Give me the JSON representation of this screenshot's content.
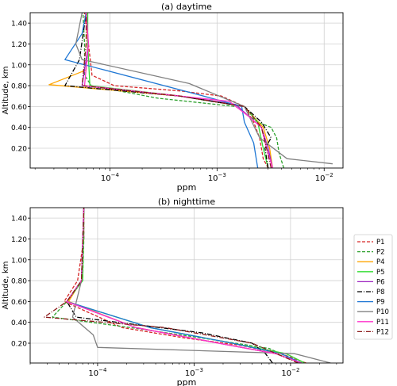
{
  "chart_data": [
    {
      "type": "line",
      "title": "(a) daytime",
      "xlabel": "ppm",
      "ylabel": "Altitude, km",
      "x_scale": "log",
      "xlim": [
        1.8e-05,
        0.015
      ],
      "ylim": [
        0.01,
        1.5
      ],
      "yticks": [
        "0.20",
        "0.40",
        "0.60",
        "0.80",
        "1.00",
        "1.20",
        "1.40"
      ],
      "xticks": [
        "10^-4",
        "10^-3",
        "10^-2"
      ],
      "grid": true,
      "series": [
        {
          "name": "P1",
          "color": "#d62728",
          "dash": "4,2",
          "x": [
            0.003,
            0.0027,
            0.0025,
            0.0022,
            0.0018,
            0.0011,
            0.00045,
            0.00011,
            6.8e-05,
            6.3e-05,
            5.8e-05
          ],
          "y": [
            0.01,
            0.1,
            0.3,
            0.45,
            0.6,
            0.7,
            0.75,
            0.8,
            0.9,
            1.2,
            1.5
          ]
        },
        {
          "name": "P2",
          "color": "#2ca02c",
          "dash": "4,2",
          "x": [
            0.0042,
            0.0038,
            0.0036,
            0.0032,
            0.0024,
            0.0015,
            0.00028,
            6.7e-05,
            5.8e-05,
            5.8e-05,
            5.6e-05
          ],
          "y": [
            0.01,
            0.15,
            0.3,
            0.4,
            0.45,
            0.6,
            0.68,
            0.8,
            0.9,
            1.2,
            1.5
          ]
        },
        {
          "name": "P4",
          "color": "#ffa500",
          "dash": "",
          "x": [
            0.0033,
            0.0031,
            0.0027,
            0.0018,
            0.00045,
            2.7e-05,
            6e-05,
            6.2e-05,
            6e-05
          ],
          "y": [
            0.01,
            0.2,
            0.4,
            0.6,
            0.7,
            0.81,
            0.95,
            1.2,
            1.5
          ]
        },
        {
          "name": "P5",
          "color": "#33dd33",
          "dash": "",
          "x": [
            0.003,
            0.0027,
            0.0024,
            0.0018,
            0.00045,
            6.5e-05,
            6.2e-05,
            6.2e-05
          ],
          "y": [
            0.01,
            0.2,
            0.45,
            0.6,
            0.7,
            0.8,
            1.2,
            1.5
          ]
        },
        {
          "name": "P6",
          "color": "#9b1fbf",
          "dash": "",
          "x": [
            0.0033,
            0.003,
            0.0026,
            0.002,
            0.0015,
            0.00045,
            5.5e-05,
            6.3e-05,
            6e-05
          ],
          "y": [
            0.01,
            0.2,
            0.4,
            0.5,
            0.62,
            0.7,
            0.8,
            1.2,
            1.5
          ]
        },
        {
          "name": "P8",
          "color": "#000000",
          "dash": "6,2,1,2",
          "x": [
            0.003,
            0.0028,
            0.0032,
            0.0026,
            0.0018,
            0.00045,
            3.8e-05,
            5.2e-05,
            6e-05
          ],
          "y": [
            0.01,
            0.2,
            0.3,
            0.45,
            0.6,
            0.7,
            0.8,
            1.05,
            1.5
          ]
        },
        {
          "name": "P9",
          "color": "#1f77d4",
          "dash": "",
          "x": [
            0.0024,
            0.0022,
            0.0018,
            0.0017,
            0.00075,
            3.8e-05,
            5.5e-05,
            6e-05
          ],
          "y": [
            0.01,
            0.25,
            0.45,
            0.6,
            0.7,
            1.05,
            1.3,
            1.5
          ]
        },
        {
          "name": "P10",
          "color": "#808080",
          "dash": "",
          "x": [
            0.012,
            0.0045,
            0.0025,
            0.0018,
            0.00055,
            5.5e-05,
            4.8e-05,
            5.5e-05
          ],
          "y": [
            0.05,
            0.1,
            0.3,
            0.6,
            0.82,
            1.05,
            1.2,
            1.5
          ]
        },
        {
          "name": "P11",
          "color": "#ff33cc",
          "dash": "",
          "x": [
            0.0033,
            0.0029,
            0.0026,
            0.002,
            0.0013,
            0.00045,
            5.8e-05,
            6.3e-05,
            6e-05
          ],
          "y": [
            0.01,
            0.2,
            0.4,
            0.5,
            0.65,
            0.7,
            0.8,
            1.2,
            1.5
          ]
        },
        {
          "name": "P12",
          "color": "#8b1a1a",
          "dash": "6,2,1,2",
          "x": [
            0.0032,
            0.0029,
            0.0026,
            0.0018,
            0.00045,
            5.5e-05,
            6e-05,
            6e-05
          ],
          "y": [
            0.01,
            0.2,
            0.4,
            0.6,
            0.7,
            0.8,
            1.2,
            1.5
          ]
        }
      ]
    },
    {
      "type": "line",
      "title": "(b) nighttime",
      "xlabel": "ppm",
      "ylabel": "Altitude, km",
      "x_scale": "log",
      "xlim": [
        2e-05,
        0.035
      ],
      "ylim": [
        0.01,
        1.5
      ],
      "yticks": [
        "0.20",
        "0.40",
        "0.60",
        "0.80",
        "1.00",
        "1.20",
        "1.40"
      ],
      "xticks": [
        "10^-4",
        "10^-3",
        "10^-2"
      ],
      "grid": true,
      "series": [
        {
          "name": "P1",
          "color": "#d62728",
          "dash": "4,2",
          "x": [
            0.0145,
            0.008,
            0.003,
            0.0008,
            0.00018,
            4.5e-05,
            6.2e-05,
            7.2e-05,
            7.2e-05
          ],
          "y": [
            0.01,
            0.1,
            0.18,
            0.25,
            0.35,
            0.6,
            0.8,
            1.2,
            1.5
          ]
        },
        {
          "name": "P2",
          "color": "#2ca02c",
          "dash": "4,2",
          "x": [
            0.013,
            0.006,
            0.0012,
            0.00022,
            3.4e-05,
            4.8e-05,
            7e-05,
            7.2e-05,
            7.2e-05
          ],
          "y": [
            0.01,
            0.15,
            0.25,
            0.35,
            0.45,
            0.6,
            0.8,
            1.2,
            1.5
          ]
        },
        {
          "name": "P4",
          "color": "#ffa500",
          "dash": "",
          "x": [
            0.013,
            0.007,
            0.0018,
            0.00025,
            5e-05,
            6.8e-05,
            7.2e-05
          ],
          "y": [
            0.01,
            0.1,
            0.2,
            0.35,
            0.6,
            0.8,
            1.5
          ]
        },
        {
          "name": "P5",
          "color": "#33dd33",
          "dash": "",
          "x": [
            0.014,
            0.009,
            0.0025,
            0.00035,
            4.8e-05,
            7e-05,
            7.2e-05
          ],
          "y": [
            0.01,
            0.1,
            0.2,
            0.35,
            0.6,
            0.8,
            1.5
          ]
        },
        {
          "name": "P6",
          "color": "#9b1fbf",
          "dash": "",
          "x": [
            0.013,
            0.007,
            0.0018,
            0.00025,
            4.8e-05,
            6.8e-05,
            7.2e-05
          ],
          "y": [
            0.01,
            0.1,
            0.2,
            0.35,
            0.6,
            0.8,
            1.5
          ]
        },
        {
          "name": "P8",
          "color": "#000000",
          "dash": "6,2,1,2",
          "x": [
            0.0065,
            0.0055,
            0.004,
            0.0012,
            6e-05,
            4.8e-05,
            6.8e-05,
            7.2e-05
          ],
          "y": [
            0.01,
            0.1,
            0.2,
            0.3,
            0.45,
            0.6,
            0.8,
            1.5
          ]
        },
        {
          "name": "P9",
          "color": "#1f77d4",
          "dash": "",
          "x": [
            0.013,
            0.008,
            0.0025,
            0.00035,
            4.8e-05,
            6.8e-05,
            7.2e-05
          ],
          "y": [
            0.01,
            0.1,
            0.2,
            0.35,
            0.6,
            0.8,
            1.5
          ]
        },
        {
          "name": "P10",
          "color": "#808080",
          "dash": "",
          "x": [
            0.026,
            0.011,
            0.0001,
            9e-05,
            5.5e-05,
            6.8e-05,
            7.2e-05
          ],
          "y": [
            0.01,
            0.1,
            0.16,
            0.28,
            0.45,
            0.8,
            1.5
          ]
        },
        {
          "name": "P11",
          "color": "#ff33cc",
          "dash": "",
          "x": [
            0.013,
            0.007,
            0.0018,
            0.00025,
            4.8e-05,
            6.8e-05,
            7.2e-05
          ],
          "y": [
            0.01,
            0.1,
            0.2,
            0.35,
            0.6,
            0.8,
            1.5
          ]
        },
        {
          "name": "P12",
          "color": "#8b1a1a",
          "dash": "6,2,1,2",
          "x": [
            0.012,
            0.004,
            0.0005,
            2.8e-05,
            4.8e-05,
            6.8e-05,
            7.2e-05
          ],
          "y": [
            0.01,
            0.2,
            0.35,
            0.45,
            0.6,
            0.8,
            1.5
          ]
        }
      ]
    }
  ],
  "legend": {
    "placement": "right of panel (b)",
    "entries": [
      "P1",
      "P2",
      "P4",
      "P5",
      "P6",
      "P8",
      "P9",
      "P10",
      "P11",
      "P12"
    ]
  }
}
